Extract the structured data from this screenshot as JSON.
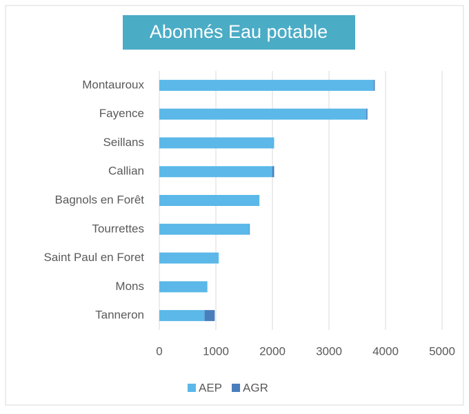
{
  "chart_data": {
    "type": "stacked-barh",
    "title": "Abonnés Eau potable",
    "categories": [
      "Montauroux",
      "Fayence",
      "Seillans",
      "Callian",
      "Bagnols en Forêt",
      "Tourrettes",
      "Saint Paul en Foret",
      "Mons",
      "Tanneron"
    ],
    "series": [
      {
        "name": "AEP",
        "color": "#5bb8e8",
        "values": [
          3790,
          3660,
          2030,
          2000,
          1770,
          1590,
          1050,
          850,
          800
        ]
      },
      {
        "name": "AGR",
        "color": "#4a7ebb",
        "values": [
          20,
          20,
          0,
          30,
          0,
          10,
          0,
          0,
          180
        ]
      }
    ],
    "xlim": [
      0,
      5000
    ],
    "xticks": [
      0,
      1000,
      2000,
      3000,
      4000,
      5000
    ],
    "grid": true,
    "legend": "bottom"
  }
}
